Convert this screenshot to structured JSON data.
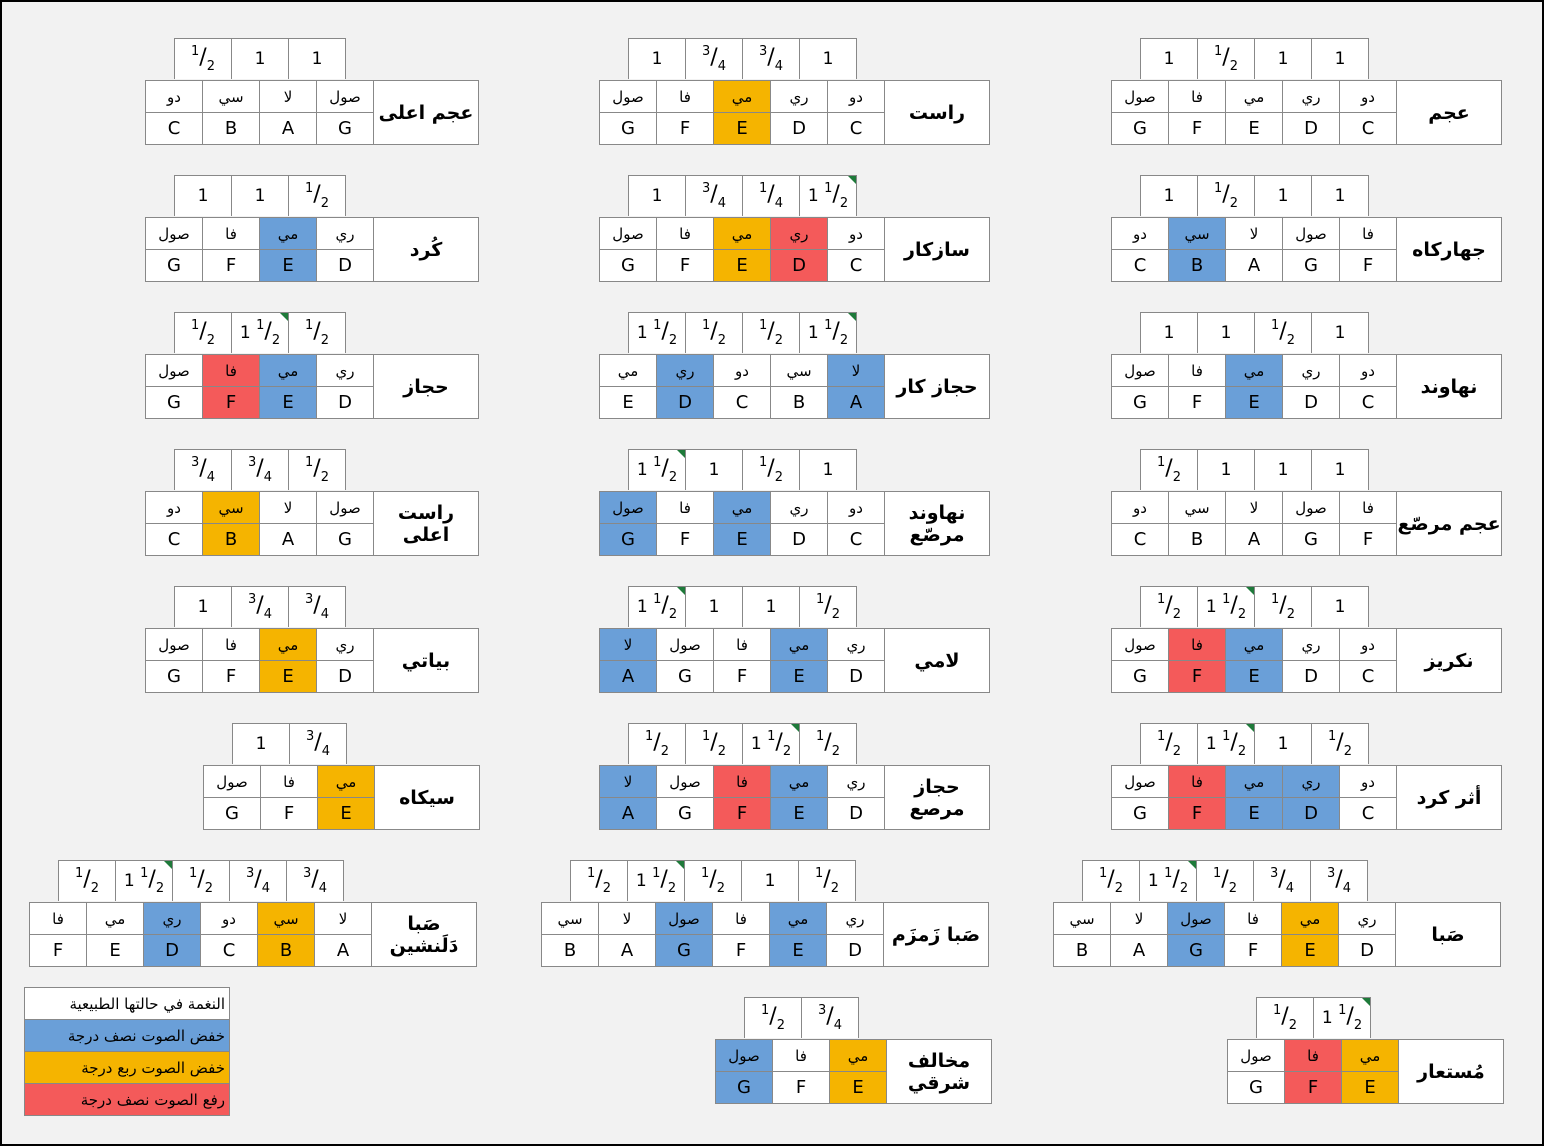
{
  "colors": {
    "natural": "#ffffff",
    "flat_half": "#6a9fd8",
    "flat_quarter": "#f5b400",
    "sharp_half": "#f45a5a",
    "mark": "#1e7a3a"
  },
  "legend": [
    {
      "label": "النغمة في حالتها الطبيعية",
      "color": "natural"
    },
    {
      "label": "خفض الصوت نصف درجة",
      "color": "flat_half"
    },
    {
      "label": "خفض الصوت ربع درجة",
      "color": "flat_quarter"
    },
    {
      "label": "رفع الصوت نصف درجة",
      "color": "sharp_half"
    }
  ],
  "maqamat": [
    {
      "id": "ajam",
      "name": "عجم",
      "ar": [
        "دو",
        "ري",
        "مي",
        "فا",
        "صول"
      ],
      "la": [
        "C",
        "D",
        "E",
        "F",
        "G"
      ],
      "col": [
        "",
        "",
        "",
        "",
        ""
      ],
      "iv": [
        "1",
        "1",
        "1/2",
        "1"
      ],
      "mk": [
        false,
        false,
        false,
        false
      ]
    },
    {
      "id": "rast",
      "name": "راست",
      "ar": [
        "دو",
        "ري",
        "مي",
        "فا",
        "صول"
      ],
      "la": [
        "C",
        "D",
        "E",
        "F",
        "G"
      ],
      "col": [
        "",
        "",
        "orange",
        "",
        ""
      ],
      "iv": [
        "1",
        "3/4",
        "3/4",
        "1"
      ],
      "mk": [
        false,
        false,
        false,
        false
      ]
    },
    {
      "id": "ajam-ala",
      "name": "عجم اعلى",
      "ar": [
        "صول",
        "لا",
        "سي",
        "دو"
      ],
      "la": [
        "G",
        "A",
        "B",
        "C"
      ],
      "col": [
        "",
        "",
        "",
        ""
      ],
      "iv": [
        "1",
        "1",
        "1/2"
      ],
      "mk": [
        false,
        false,
        false
      ]
    },
    {
      "id": "jaharkah",
      "name": "جهاركاه",
      "ar": [
        "فا",
        "صول",
        "لا",
        "سي",
        "دو"
      ],
      "la": [
        "F",
        "G",
        "A",
        "B",
        "C"
      ],
      "col": [
        "",
        "",
        "",
        "blue",
        ""
      ],
      "iv": [
        "1",
        "1",
        "1/2",
        "1"
      ],
      "mk": [
        false,
        false,
        false,
        false
      ]
    },
    {
      "id": "sazkar",
      "name": "سازكار",
      "ar": [
        "دو",
        "ري",
        "مي",
        "فا",
        "صول"
      ],
      "la": [
        "C",
        "D",
        "E",
        "F",
        "G"
      ],
      "col": [
        "",
        "red",
        "orange",
        "",
        ""
      ],
      "iv": [
        "1 1/2",
        "1/4",
        "3/4",
        "1"
      ],
      "mk": [
        true,
        false,
        false,
        false
      ]
    },
    {
      "id": "kurd",
      "name": "كُرد",
      "ar": [
        "ري",
        "مي",
        "فا",
        "صول"
      ],
      "la": [
        "D",
        "E",
        "F",
        "G"
      ],
      "col": [
        "",
        "blue",
        "",
        ""
      ],
      "iv": [
        "1/2",
        "1",
        "1"
      ],
      "mk": [
        false,
        false,
        false
      ]
    },
    {
      "id": "nahawand",
      "name": "نهاوند",
      "ar": [
        "دو",
        "ري",
        "مي",
        "فا",
        "صول"
      ],
      "la": [
        "C",
        "D",
        "E",
        "F",
        "G"
      ],
      "col": [
        "",
        "",
        "blue",
        "",
        ""
      ],
      "iv": [
        "1",
        "1/2",
        "1",
        "1"
      ],
      "mk": [
        false,
        false,
        false,
        false
      ]
    },
    {
      "id": "hijazkar",
      "name": "حجاز كار",
      "ar": [
        "لا",
        "سي",
        "دو",
        "ري",
        "مي"
      ],
      "la": [
        "A",
        "B",
        "C",
        "D",
        "E"
      ],
      "col": [
        "blue",
        "",
        "",
        "blue",
        ""
      ],
      "iv": [
        "1 1/2",
        "1/2",
        "1/2",
        "1 1/2"
      ],
      "mk": [
        true,
        false,
        false,
        false
      ]
    },
    {
      "id": "hijaz",
      "name": "حجاز",
      "ar": [
        "ري",
        "مي",
        "فا",
        "صول"
      ],
      "la": [
        "D",
        "E",
        "F",
        "G"
      ],
      "col": [
        "",
        "blue",
        "red",
        ""
      ],
      "iv": [
        "1/2",
        "1 1/2",
        "1/2"
      ],
      "mk": [
        false,
        true,
        false
      ]
    },
    {
      "id": "ajam-murassa",
      "name": "عجم مرصّع",
      "ar": [
        "فا",
        "صول",
        "لا",
        "سي",
        "دو"
      ],
      "la": [
        "F",
        "G",
        "A",
        "B",
        "C"
      ],
      "col": [
        "",
        "",
        "",
        "",
        ""
      ],
      "iv": [
        "1",
        "1",
        "1",
        "1/2"
      ],
      "mk": [
        false,
        false,
        false,
        false
      ]
    },
    {
      "id": "nahawand-murassa",
      "name": "نهاوند مرصّع",
      "ar": [
        "دو",
        "ري",
        "مي",
        "فا",
        "صول"
      ],
      "la": [
        "C",
        "D",
        "E",
        "F",
        "G"
      ],
      "col": [
        "",
        "",
        "blue",
        "",
        "blue"
      ],
      "iv": [
        "1",
        "1/2",
        "1",
        "1 1/2"
      ],
      "mk": [
        false,
        false,
        false,
        true
      ]
    },
    {
      "id": "rast-ala",
      "name": "راست اعلى",
      "ar": [
        "صول",
        "لا",
        "سي",
        "دو"
      ],
      "la": [
        "G",
        "A",
        "B",
        "C"
      ],
      "col": [
        "",
        "",
        "orange",
        ""
      ],
      "iv": [
        "1/2",
        "3/4",
        "3/4"
      ],
      "mk": [
        false,
        false,
        false
      ]
    },
    {
      "id": "nakriz",
      "name": "نكريز",
      "ar": [
        "دو",
        "ري",
        "مي",
        "فا",
        "صول"
      ],
      "la": [
        "C",
        "D",
        "E",
        "F",
        "G"
      ],
      "col": [
        "",
        "",
        "blue",
        "red",
        ""
      ],
      "iv": [
        "1",
        "1/2",
        "1 1/2",
        "1/2"
      ],
      "mk": [
        false,
        false,
        true,
        false
      ]
    },
    {
      "id": "lami",
      "name": "لامي",
      "ar": [
        "ري",
        "مي",
        "فا",
        "صول",
        "لا"
      ],
      "la": [
        "D",
        "E",
        "F",
        "G",
        "A"
      ],
      "col": [
        "",
        "blue",
        "",
        "",
        "blue"
      ],
      "iv": [
        "1/2",
        "1",
        "1",
        "1 1/2"
      ],
      "mk": [
        false,
        false,
        false,
        true
      ]
    },
    {
      "id": "bayati",
      "name": "بياتي",
      "ar": [
        "ري",
        "مي",
        "فا",
        "صول"
      ],
      "la": [
        "D",
        "E",
        "F",
        "G"
      ],
      "col": [
        "",
        "orange",
        "",
        ""
      ],
      "iv": [
        "3/4",
        "3/4",
        "1"
      ],
      "mk": [
        false,
        false,
        false
      ]
    },
    {
      "id": "athar-kurd",
      "name": "أثر كرد",
      "ar": [
        "دو",
        "ري",
        "مي",
        "فا",
        "صول"
      ],
      "la": [
        "C",
        "D",
        "E",
        "F",
        "G"
      ],
      "col": [
        "",
        "blue",
        "blue",
        "red",
        ""
      ],
      "iv": [
        "1/2",
        "1",
        "1 1/2",
        "1/2"
      ],
      "mk": [
        false,
        false,
        true,
        false
      ]
    },
    {
      "id": "hijaz-murassa",
      "name": "حجاز مرصع",
      "ar": [
        "ري",
        "مي",
        "فا",
        "صول",
        "لا"
      ],
      "la": [
        "D",
        "E",
        "F",
        "G",
        "A"
      ],
      "col": [
        "",
        "blue",
        "red",
        "",
        "blue"
      ],
      "iv": [
        "1/2",
        "1 1/2",
        "1/2",
        "1/2"
      ],
      "mk": [
        false,
        true,
        false,
        false
      ]
    },
    {
      "id": "sikah",
      "name": "سيكاه",
      "ar": [
        "مي",
        "فا",
        "صول"
      ],
      "la": [
        "E",
        "F",
        "G"
      ],
      "col": [
        "orange",
        "",
        ""
      ],
      "iv": [
        "3/4",
        "1"
      ],
      "mk": [
        false,
        false
      ]
    },
    {
      "id": "saba",
      "name": "صَبا",
      "ar": [
        "ري",
        "مي",
        "فا",
        "صول",
        "لا",
        "سي"
      ],
      "la": [
        "D",
        "E",
        "F",
        "G",
        "A",
        "B"
      ],
      "col": [
        "",
        "orange",
        "",
        "blue",
        "",
        ""
      ],
      "iv": [
        "3/4",
        "3/4",
        "1/2",
        "1 1/2",
        "1/2"
      ],
      "mk": [
        false,
        false,
        false,
        true,
        false
      ]
    },
    {
      "id": "saba-zamzam",
      "name": "صَبا زَمزَم",
      "ar": [
        "ري",
        "مي",
        "فا",
        "صول",
        "لا",
        "سي"
      ],
      "la": [
        "D",
        "E",
        "F",
        "G",
        "A",
        "B"
      ],
      "col": [
        "",
        "blue",
        "",
        "blue",
        "",
        ""
      ],
      "iv": [
        "1/2",
        "1",
        "1/2",
        "1 1/2",
        "1/2"
      ],
      "mk": [
        false,
        false,
        false,
        true,
        false
      ]
    },
    {
      "id": "saba-dalanshin",
      "name": "صَبا دَلَنشين",
      "ar": [
        "لا",
        "سي",
        "دو",
        "ري",
        "مي",
        "فا"
      ],
      "la": [
        "A",
        "B",
        "C",
        "D",
        "E",
        "F"
      ],
      "col": [
        "",
        "orange",
        "",
        "blue",
        "",
        ""
      ],
      "iv": [
        "3/4",
        "3/4",
        "1/2",
        "1 1/2",
        "1/2"
      ],
      "mk": [
        false,
        false,
        false,
        true,
        false
      ]
    },
    {
      "id": "mustaar",
      "name": "مُستعار",
      "ar": [
        "مي",
        "فا",
        "صول"
      ],
      "la": [
        "E",
        "F",
        "G"
      ],
      "col": [
        "orange",
        "red",
        ""
      ],
      "iv": [
        "1 1/2",
        "1/2"
      ],
      "mk": [
        true,
        false
      ]
    },
    {
      "id": "mukhalif-sharqi",
      "name": "مخالف شرقي",
      "ar": [
        "مي",
        "فا",
        "صول"
      ],
      "la": [
        "E",
        "F",
        "G"
      ],
      "col": [
        "orange",
        "",
        "blue"
      ],
      "iv": [
        "3/4",
        "1/2"
      ],
      "mk": [
        false,
        false
      ]
    }
  ]
}
